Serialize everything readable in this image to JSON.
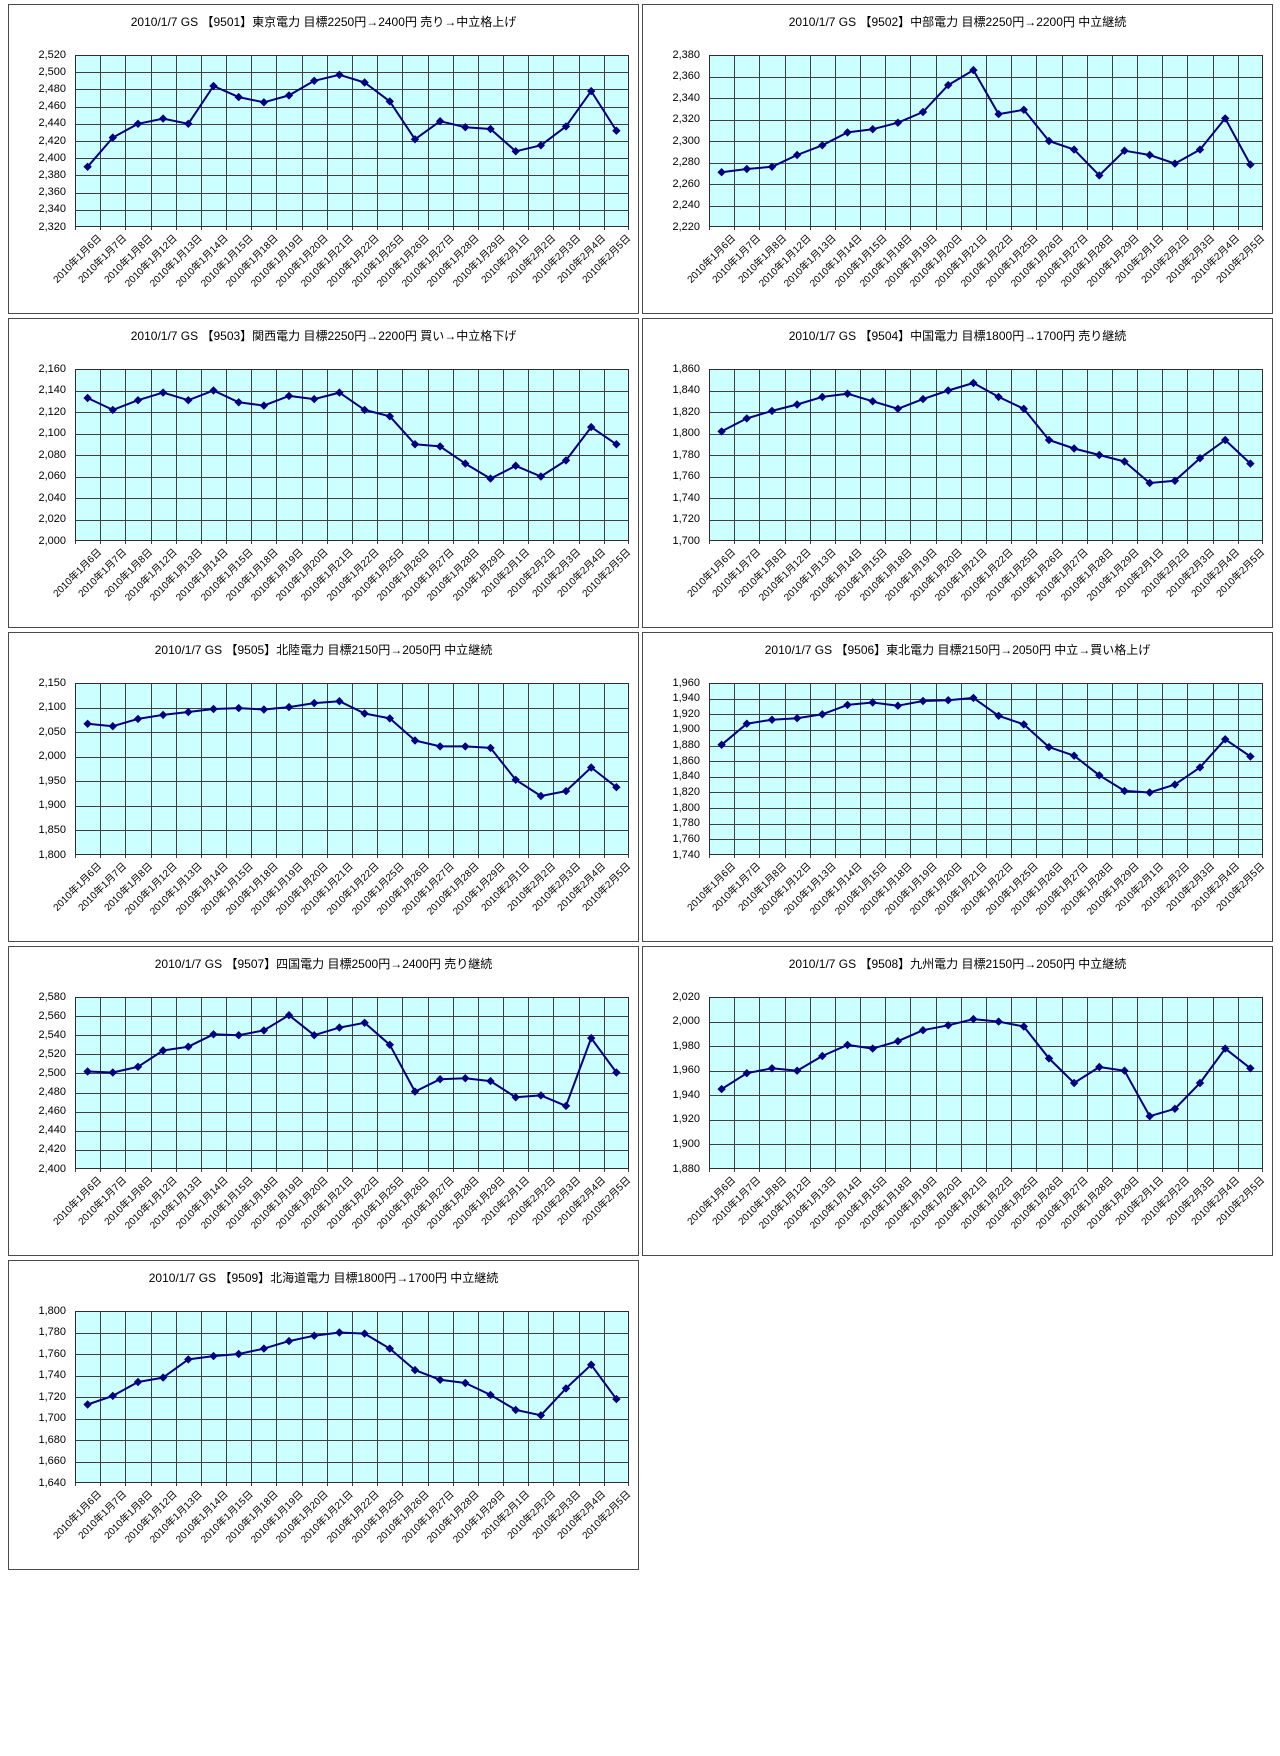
{
  "report": {
    "description_note": "",
    "broker": "GS",
    "date": "2010/1/7"
  },
  "colors": {
    "plot_bg": "#ccffff",
    "grid": "#3f3f3f",
    "plot_border": "#2e2e2e",
    "line": "#000080",
    "marker": "#000080",
    "box_border": "#4a4a4a",
    "text": "#000000"
  },
  "dates": [
    "2010年1月6日",
    "2010年1月7日",
    "2010年1月8日",
    "2010年1月12日",
    "2010年1月13日",
    "2010年1月14日",
    "2010年1月15日",
    "2010年1月18日",
    "2010年1月19日",
    "2010年1月20日",
    "2010年1月21日",
    "2010年1月22日",
    "2010年1月25日",
    "2010年1月26日",
    "2010年1月27日",
    "2010年1月28日",
    "2010年1月29日",
    "2010年2月1日",
    "2010年2月2日",
    "2010年2月3日",
    "2010年2月4日",
    "2010年2月5日"
  ],
  "chart_data": [
    {
      "type": "line",
      "title": "2010/1/7 GS 【9501】東京電力 目標2250円→2400円 売り→中立格上げ",
      "ylim": [
        2320,
        2520
      ],
      "y_step": 20,
      "y_ticks": [
        "2,520",
        "2,500",
        "2,480",
        "2,460",
        "2,440",
        "2,420",
        "2,400",
        "2,380",
        "2,360",
        "2,340",
        "2,320"
      ],
      "values": [
        2390,
        2424,
        2440,
        2446,
        2440,
        2484,
        2471,
        2465,
        2473,
        2490,
        2497,
        2488,
        2466,
        2422,
        2443,
        2436,
        2434,
        2408,
        2415,
        2437,
        2478,
        2432
      ]
    },
    {
      "type": "line",
      "title": "2010/1/7 GS 【9502】中部電力 目標2250円→2200円 中立継続",
      "ylim": [
        2220,
        2380
      ],
      "y_step": 20,
      "y_ticks": [
        "2,380",
        "2,360",
        "2,340",
        "2,320",
        "2,300",
        "2,280",
        "2,260",
        "2,240",
        "2,220"
      ],
      "values": [
        2271,
        2274,
        2276,
        2287,
        2296,
        2308,
        2311,
        2317,
        2327,
        2352,
        2366,
        2325,
        2329,
        2300,
        2292,
        2268,
        2291,
        2287,
        2279,
        2292,
        2321,
        2278
      ]
    },
    {
      "type": "line",
      "title": "2010/1/7 GS 【9503】関西電力 目標2250円→2200円 買い→中立格下げ",
      "ylim": [
        2000,
        2160
      ],
      "y_step": 20,
      "y_ticks": [
        "2,160",
        "2,140",
        "2,120",
        "2,100",
        "2,080",
        "2,060",
        "2,040",
        "2,020",
        "2,000"
      ],
      "values": [
        2133,
        2122,
        2131,
        2138,
        2131,
        2140,
        2129,
        2126,
        2135,
        2132,
        2138,
        2122,
        2116,
        2090,
        2088,
        2072,
        2058,
        2070,
        2060,
        2075,
        2106,
        2090
      ]
    },
    {
      "type": "line",
      "title": "2010/1/7 GS 【9504】中国電力 目標1800円→1700円 売り継続",
      "ylim": [
        1700,
        1860
      ],
      "y_step": 20,
      "y_ticks": [
        "1,860",
        "1,840",
        "1,820",
        "1,800",
        "1,780",
        "1,760",
        "1,740",
        "1,720",
        "1,700"
      ],
      "values": [
        1802,
        1814,
        1821,
        1827,
        1834,
        1837,
        1830,
        1823,
        1832,
        1840,
        1847,
        1834,
        1823,
        1794,
        1786,
        1780,
        1774,
        1754,
        1756,
        1777,
        1794,
        1772
      ]
    },
    {
      "type": "line",
      "title": "2010/1/7 GS 【9505】北陸電力 目標2150円→2050円 中立継続",
      "ylim": [
        1800,
        2150
      ],
      "y_step": 50,
      "y_ticks": [
        "2,150",
        "2,100",
        "2,050",
        "2,000",
        "1,950",
        "1,900",
        "1,850",
        "1,800"
      ],
      "values": [
        2067,
        2062,
        2077,
        2085,
        2091,
        2097,
        2099,
        2096,
        2101,
        2109,
        2113,
        2088,
        2078,
        2033,
        2021,
        2021,
        2018,
        1953,
        1920,
        1930,
        1978,
        1938
      ]
    },
    {
      "type": "line",
      "title": "2010/1/7 GS 【9506】東北電力 目標2150円→2050円 中立→買い格上げ",
      "ylim": [
        1740,
        1960
      ],
      "y_step": 20,
      "y_ticks": [
        "1,960",
        "1,940",
        "1,920",
        "1,900",
        "1,880",
        "1,860",
        "1,840",
        "1,820",
        "1,800",
        "1,780",
        "1,760",
        "1,740"
      ],
      "values": [
        1881,
        1908,
        1913,
        1915,
        1920,
        1932,
        1935,
        1931,
        1937,
        1938,
        1941,
        1918,
        1907,
        1878,
        1867,
        1842,
        1822,
        1820,
        1830,
        1852,
        1888,
        1866
      ]
    },
    {
      "type": "line",
      "title": "2010/1/7 GS 【9507】四国電力 目標2500円→2400円 売り継続",
      "ylim": [
        2400,
        2580
      ],
      "y_step": 20,
      "y_ticks": [
        "2,580",
        "2,560",
        "2,540",
        "2,520",
        "2,500",
        "2,480",
        "2,460",
        "2,440",
        "2,420",
        "2,400"
      ],
      "values": [
        2502,
        2501,
        2507,
        2524,
        2528,
        2541,
        2540,
        2545,
        2561,
        2540,
        2548,
        2553,
        2530,
        2481,
        2494,
        2495,
        2492,
        2475,
        2477,
        2466,
        2537,
        2501
      ]
    },
    {
      "type": "line",
      "title": "2010/1/7 GS 【9508】九州電力 目標2150円→2050円 中立継続",
      "ylim": [
        1880,
        2020
      ],
      "y_step": 20,
      "y_ticks": [
        "2,020",
        "2,000",
        "1,980",
        "1,960",
        "1,940",
        "1,920",
        "1,900",
        "1,880"
      ],
      "values": [
        1945,
        1958,
        1962,
        1960,
        1972,
        1981,
        1978,
        1984,
        1993,
        1997,
        2002,
        2000,
        1996,
        1970,
        1950,
        1963,
        1960,
        1923,
        1929,
        1950,
        1978,
        1962
      ]
    },
    {
      "type": "line",
      "title": "2010/1/7 GS 【9509】北海道電力 目標1800円→1700円 中立継続",
      "ylim": [
        1640,
        1800
      ],
      "y_step": 20,
      "y_ticks": [
        "1,800",
        "1,780",
        "1,760",
        "1,740",
        "1,720",
        "1,700",
        "1,680",
        "1,660",
        "1,640"
      ],
      "values": [
        1713,
        1721,
        1734,
        1738,
        1755,
        1758,
        1760,
        1765,
        1772,
        1777,
        1780,
        1779,
        1765,
        1745,
        1736,
        1733,
        1722,
        1708,
        1703,
        1728,
        1750,
        1718
      ]
    }
  ]
}
